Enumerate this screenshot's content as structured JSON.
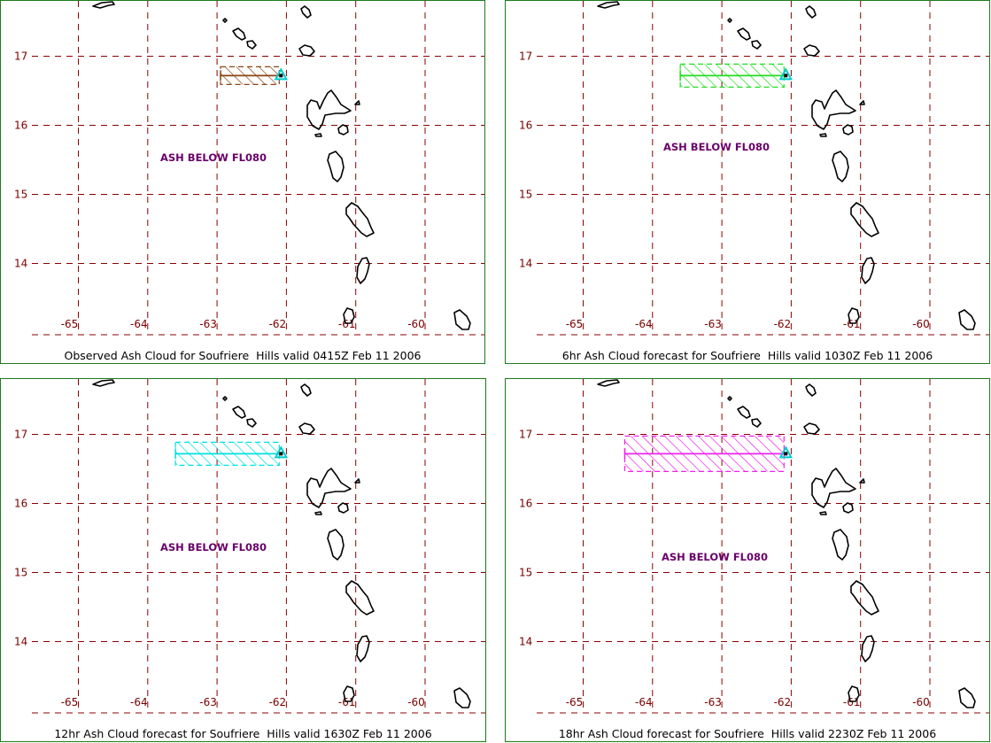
{
  "panels": [
    {
      "caption": "Observed Ash Cloud for Soufriere  Hills valid 0415Z Feb 11 2006",
      "label": "ASH BELOW  FL080",
      "cloud_color": "#8b4513",
      "cloud_west_lon": -62.95
    },
    {
      "caption": "6hr Ash Cloud forecast for Soufriere  Hills valid 1030Z Feb 11 2006",
      "label": "ASH BELOW  FL080",
      "cloud_color": "#22dd22",
      "cloud_west_lon": -63.6
    },
    {
      "caption": "12hr Ash Cloud forecast for Soufriere  Hills valid 1630Z Feb 11 2006",
      "label": "ASH BELOW  FL080",
      "cloud_color": "#00e0e0",
      "cloud_west_lon": -63.6
    },
    {
      "caption": "18hr Ash Cloud forecast for Soufriere  Hills valid 2230Z Feb 11 2006",
      "label": "ASH BELOW  FL080",
      "cloud_color": "#ee22ee",
      "cloud_west_lon": -64.4
    }
  ],
  "lon_ticks": [
    "-65",
    "-64",
    "-63",
    "-62",
    "-61",
    "-60"
  ],
  "lat_ticks": [
    "17",
    "16",
    "15",
    "14"
  ],
  "volcano": {
    "name": "Soufriere Hills",
    "lat": 16.72,
    "lon": -62.18
  },
  "colors": {
    "grid": "#8b0000",
    "border": "#1e7a1e",
    "volcano_marker": "#00cccc",
    "coastline": "#000000"
  }
}
